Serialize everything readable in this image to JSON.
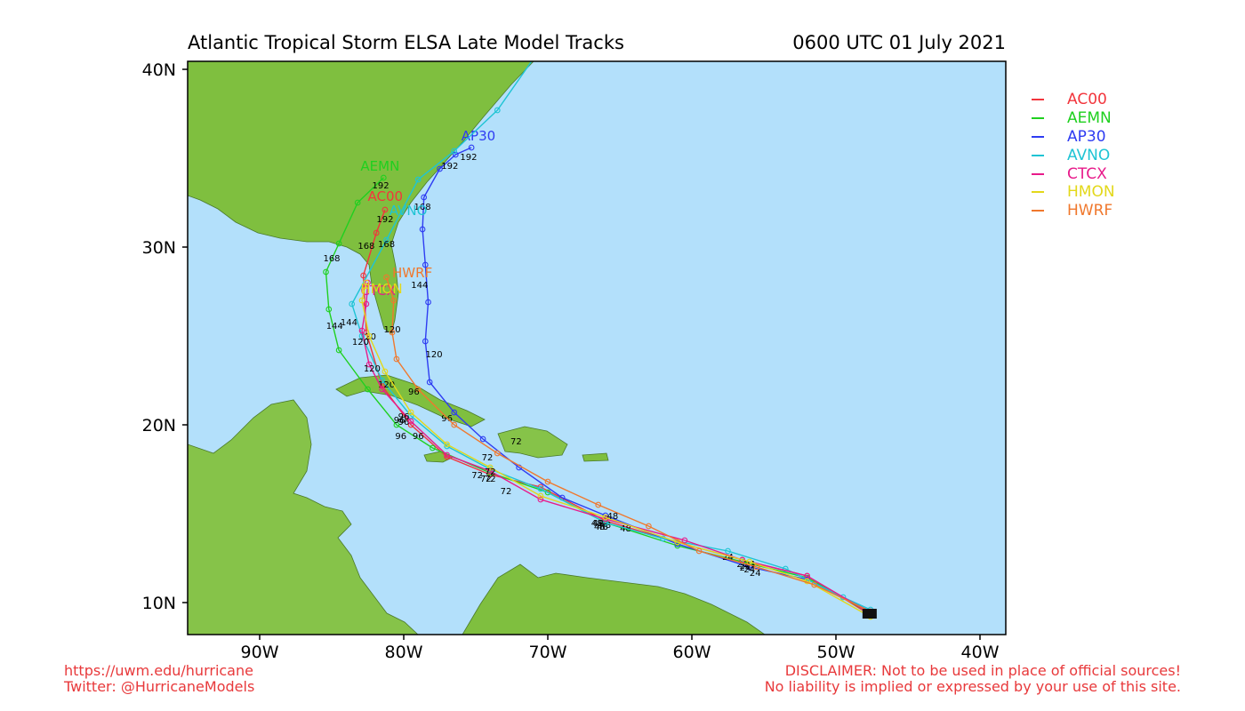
{
  "header": {
    "title": "Atlantic Tropical Storm ELSA Late Model Tracks",
    "time": "0600 UTC 01 July 2021"
  },
  "axes": {
    "lat_labels": [
      "40N",
      "30N",
      "20N",
      "10N"
    ],
    "lon_labels": [
      "90W",
      "80W",
      "70W",
      "60W",
      "50W",
      "40W"
    ]
  },
  "colors": {
    "ocean": "#b3e0fb",
    "land": "#7fbf3f",
    "AC00": "#f2353c",
    "AEMN": "#1fd01f",
    "AP30": "#2e3cf2",
    "AVNO": "#1fc4d4",
    "CTCX": "#e81a8a",
    "HMON": "#e3d81a",
    "HWRF": "#f0782d"
  },
  "legend": [
    "AC00",
    "AEMN",
    "AP30",
    "AVNO",
    "CTCX",
    "HMON",
    "HWRF"
  ],
  "tracks": [
    {
      "model": "AC00",
      "points": [
        [
          -47.6,
          9.3
        ],
        [
          -52,
          11.5
        ],
        [
          -56.5,
          12.4
        ],
        [
          -61,
          13.4
        ],
        [
          -66,
          14.6
        ],
        [
          -70.5,
          16.5
        ],
        [
          -74,
          17.2
        ],
        [
          -77,
          18.2
        ],
        [
          -79.5,
          20.0
        ],
        [
          -81.5,
          22.2
        ],
        [
          -82.6,
          25.2
        ],
        [
          -82.8,
          28.4
        ],
        [
          -81.9,
          30.8
        ],
        [
          -81.3,
          32.1
        ]
      ],
      "labels": [
        {
          "t": "24",
          "at": [
            -56.5,
            12.0
          ]
        },
        {
          "t": "48",
          "at": [
            -66,
            14.2
          ]
        },
        {
          "t": "72",
          "at": [
            -74,
            16.8
          ]
        },
        {
          "t": "96",
          "at": [
            -80,
            20.0
          ]
        },
        {
          "t": "120",
          "at": [
            -82.5,
            24.8
          ]
        },
        {
          "t": "168",
          "at": [
            -82.6,
            29.9
          ]
        },
        {
          "t": "192",
          "at": [
            -81.3,
            31.4
          ]
        }
      ],
      "name_label": {
        "t": "AC00",
        "at": [
          -82.5,
          32.6
        ]
      }
    },
    {
      "model": "AEMN",
      "points": [
        [
          -47.6,
          9.4
        ],
        [
          -52,
          11.4
        ],
        [
          -56.5,
          12.3
        ],
        [
          -61,
          13.2
        ],
        [
          -66,
          14.5
        ],
        [
          -70,
          16.2
        ],
        [
          -74,
          17.3
        ],
        [
          -78,
          18.7
        ],
        [
          -80.5,
          20.0
        ],
        [
          -82.5,
          22.0
        ],
        [
          -84.5,
          24.2
        ],
        [
          -85.2,
          26.5
        ],
        [
          -85.4,
          28.6
        ],
        [
          -84.5,
          30.2
        ],
        [
          -83.2,
          32.5
        ],
        [
          -81.4,
          33.9
        ]
      ],
      "labels": [
        {
          "t": "24",
          "at": [
            -56.3,
            11.9
          ]
        },
        {
          "t": "48",
          "at": [
            -66.2,
            14.1
          ]
        },
        {
          "t": "72",
          "at": [
            -74.3,
            16.8
          ]
        },
        {
          "t": "96",
          "at": [
            -80.2,
            19.2
          ]
        },
        {
          "t": "144",
          "at": [
            -84.8,
            25.4
          ]
        },
        {
          "t": "168",
          "at": [
            -85.0,
            29.2
          ]
        },
        {
          "t": "192",
          "at": [
            -81.6,
            33.3
          ]
        }
      ],
      "name_label": {
        "t": "AEMN",
        "at": [
          -83.0,
          34.3
        ]
      }
    },
    {
      "model": "AP30",
      "points": [
        [
          -47.6,
          9.5
        ],
        [
          -52,
          11.3
        ],
        [
          -56,
          12.0
        ],
        [
          -61,
          13.3
        ],
        [
          -66,
          14.9
        ],
        [
          -69,
          15.9
        ],
        [
          -72,
          17.6
        ],
        [
          -74.5,
          19.2
        ],
        [
          -76.5,
          20.7
        ],
        [
          -78.2,
          22.4
        ],
        [
          -78.5,
          24.7
        ],
        [
          -78.3,
          26.9
        ],
        [
          -78.5,
          29.0
        ],
        [
          -78.7,
          31.0
        ],
        [
          -78.6,
          32.8
        ],
        [
          -77.5,
          34.4
        ],
        [
          -76.4,
          35.2
        ],
        [
          -75.3,
          35.6
        ]
      ],
      "labels": [
        {
          "t": "24",
          "at": [
            -55.6,
            11.5
          ]
        },
        {
          "t": "48",
          "at": [
            -64.6,
            14.0
          ]
        },
        {
          "t": "72",
          "at": [
            -72.2,
            18.9
          ]
        },
        {
          "t": "96",
          "at": [
            -77.0,
            20.2
          ]
        },
        {
          "t": "120",
          "at": [
            -77.9,
            23.8
          ]
        },
        {
          "t": "144",
          "at": [
            -78.9,
            27.7
          ]
        },
        {
          "t": "168",
          "at": [
            -78.7,
            32.1
          ]
        },
        {
          "t": "192",
          "at": [
            -75.5,
            34.9
          ]
        }
      ],
      "name_label": {
        "t": "AP30",
        "at": [
          -76.0,
          36.0
        ]
      }
    },
    {
      "model": "AVNO",
      "points": [
        [
          -47.6,
          9.6
        ],
        [
          -49.5,
          10.3
        ],
        [
          -53.5,
          11.9
        ],
        [
          -57.5,
          12.9
        ],
        [
          -62,
          13.6
        ],
        [
          -66,
          14.5
        ],
        [
          -70.5,
          16.4
        ],
        [
          -74,
          17.5
        ],
        [
          -77,
          18.8
        ],
        [
          -79.5,
          20.5
        ],
        [
          -81.5,
          22.5
        ],
        [
          -82.9,
          25.0
        ],
        [
          -83.6,
          26.8
        ],
        [
          -81.2,
          30.4
        ],
        [
          -79.0,
          33.8
        ],
        [
          -76.5,
          35.4
        ],
        [
          -73.5,
          37.7
        ],
        [
          -71.0,
          40.6
        ]
      ],
      "labels": [
        {
          "t": "24",
          "at": [
            -57.5,
            12.4
          ]
        },
        {
          "t": "48",
          "at": [
            -66.4,
            14.1
          ]
        },
        {
          "t": "72",
          "at": [
            -72.9,
            16.1
          ]
        },
        {
          "t": "96",
          "at": [
            -79.0,
            19.2
          ]
        },
        {
          "t": "120",
          "at": [
            -81.2,
            22.1
          ]
        },
        {
          "t": "144",
          "at": [
            -83.8,
            25.6
          ]
        },
        {
          "t": "168",
          "at": [
            -81.2,
            30.0
          ]
        },
        {
          "t": "192",
          "at": [
            -76.8,
            34.4
          ]
        }
      ],
      "name_label": {
        "t": "AVNO",
        "at": [
          -81.0,
          31.8
        ]
      }
    },
    {
      "model": "CTCX",
      "points": [
        [
          -47.6,
          9.4
        ],
        [
          -52,
          11.5
        ],
        [
          -56.5,
          12.4
        ],
        [
          -60.5,
          13.5
        ],
        [
          -66,
          14.7
        ],
        [
          -70.5,
          15.8
        ],
        [
          -74,
          17.4
        ],
        [
          -77,
          18.3
        ],
        [
          -79.5,
          20.2
        ],
        [
          -81.5,
          22.0
        ],
        [
          -82.4,
          23.4
        ],
        [
          -82.9,
          25.3
        ],
        [
          -82.6,
          26.8
        ],
        [
          -82.5,
          28.0
        ]
      ],
      "labels": [
        {
          "t": "24",
          "at": [
            -56.0,
            12.0
          ]
        },
        {
          "t": "48",
          "at": [
            -66.6,
            14.3
          ]
        },
        {
          "t": "72",
          "at": [
            -74.9,
            17.0
          ]
        },
        {
          "t": "96",
          "at": [
            -80.3,
            20.1
          ]
        },
        {
          "t": "120",
          "at": [
            -83.0,
            24.5
          ]
        }
      ],
      "name_label": {
        "t": "CTCX",
        "at": [
          -83.0,
          27.3
        ]
      }
    },
    {
      "model": "HMON",
      "points": [
        [
          -47.6,
          9.2
        ],
        [
          -52,
          11.2
        ],
        [
          -56,
          12.3
        ],
        [
          -61,
          13.4
        ],
        [
          -66,
          14.8
        ],
        [
          -70.5,
          16.0
        ],
        [
          -74,
          17.6
        ],
        [
          -77,
          18.9
        ],
        [
          -79.5,
          20.7
        ],
        [
          -81.3,
          23.0
        ],
        [
          -82.4,
          25.0
        ],
        [
          -82.9,
          27.0
        ],
        [
          -82.6,
          28.0
        ]
      ],
      "labels": [
        {
          "t": "24",
          "at": [
            -56.3,
            11.8
          ]
        },
        {
          "t": "48",
          "at": [
            -66.5,
            14.3
          ]
        },
        {
          "t": "72",
          "at": [
            -74.0,
            17.2
          ]
        },
        {
          "t": "96",
          "at": [
            -80.0,
            20.3
          ]
        },
        {
          "t": "120",
          "at": [
            -82.2,
            23.0
          ]
        }
      ],
      "name_label": {
        "t": "HMON",
        "at": [
          -83.0,
          27.4
        ]
      }
    },
    {
      "model": "HWRF",
      "points": [
        [
          -47.6,
          9.5
        ],
        [
          -51.5,
          11.0
        ],
        [
          -55.5,
          12.0
        ],
        [
          -59.5,
          12.9
        ],
        [
          -63,
          14.3
        ],
        [
          -66.5,
          15.5
        ],
        [
          -70,
          16.8
        ],
        [
          -73.5,
          18.4
        ],
        [
          -76.5,
          20.0
        ],
        [
          -79,
          22.0
        ],
        [
          -80.5,
          23.7
        ],
        [
          -80.8,
          25.2
        ],
        [
          -80.7,
          27.0
        ],
        [
          -81.2,
          28.3
        ]
      ],
      "labels": [
        {
          "t": "24",
          "at": [
            -56.0,
            11.7
          ]
        },
        {
          "t": "48",
          "at": [
            -65.5,
            14.7
          ]
        },
        {
          "t": "72",
          "at": [
            -74.2,
            18.0
          ]
        },
        {
          "t": "96",
          "at": [
            -79.3,
            21.7
          ]
        },
        {
          "t": "120",
          "at": [
            -80.8,
            25.2
          ]
        }
      ],
      "name_label": {
        "t": "HWRF",
        "at": [
          -80.8,
          28.3
        ]
      }
    }
  ],
  "footer": {
    "url": "https://uwm.edu/hurricane",
    "twitter": "Twitter: @HurricaneModels",
    "disclaimer1": "DISCLAIMER: Not to be used in place of official sources!",
    "disclaimer2": "No liability is implied or expressed by your use of this site."
  }
}
